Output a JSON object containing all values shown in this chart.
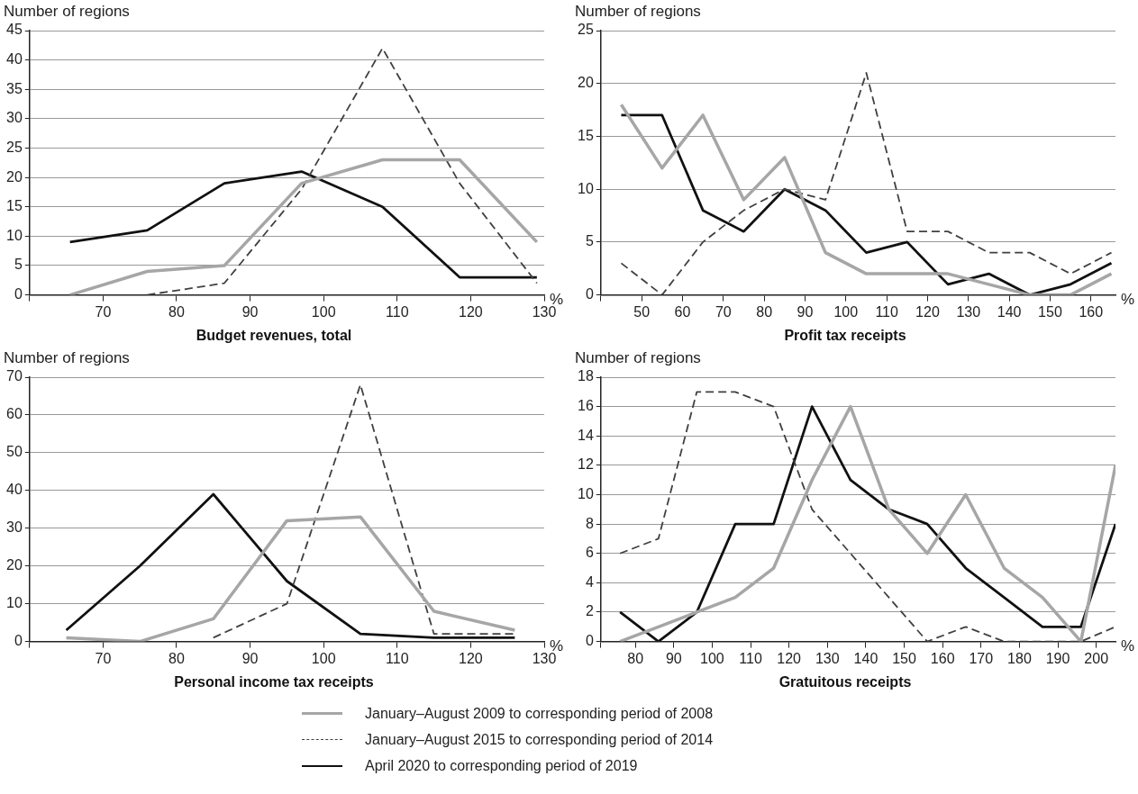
{
  "chart_data": [
    {
      "type": "line",
      "title": "Budget revenues, total",
      "ylabel": "Number of regions",
      "xlabel": "%",
      "xlim": [
        60,
        130
      ],
      "xticks": [
        {
          "value": 60,
          "label": null
        },
        70,
        80,
        90,
        100,
        110,
        120,
        130
      ],
      "ylim": [
        0,
        45
      ],
      "yticks": [
        0,
        5,
        10,
        15,
        20,
        25,
        30,
        35,
        40,
        45
      ],
      "grid": "y",
      "marker": "none",
      "legend": "bottom",
      "series": [
        {
          "name": "January–August 2009 to corresponding period of 2008",
          "color": "#a6a6a6",
          "x": [
            65.5,
            76,
            86.5,
            97,
            108,
            118.5,
            129
          ],
          "values": [
            0,
            4,
            5,
            19,
            23,
            23,
            9
          ]
        },
        {
          "name": "January–August 2015 to corresponding period of 2014",
          "color": "#404040",
          "line_style": "dashed",
          "x": [
            76,
            86.5,
            97,
            108,
            118.5,
            129
          ],
          "values": [
            0,
            2,
            18,
            42,
            19,
            2
          ]
        },
        {
          "name": "April 2020 to corresponding period of 2019",
          "color": "#111111",
          "x": [
            65.5,
            76,
            86.5,
            97,
            108,
            118.5,
            129
          ],
          "values": [
            9,
            11,
            19,
            21,
            15,
            3,
            3
          ]
        }
      ]
    },
    {
      "type": "line",
      "title": "Profit tax receipts",
      "ylabel": "Number of regions",
      "xlabel": "%",
      "xlim": [
        40,
        166
      ],
      "xticks": [
        {
          "value": 40,
          "label": null
        },
        50,
        60,
        70,
        80,
        90,
        100,
        110,
        120,
        130,
        140,
        150,
        160
      ],
      "ylim": [
        0,
        25
      ],
      "yticks": [
        0,
        5,
        10,
        15,
        20,
        25
      ],
      "grid": "y",
      "marker": "none",
      "series": [
        {
          "color": "#a6a6a6",
          "x": [
            45,
            55,
            65,
            75,
            85,
            95,
            105,
            115,
            125,
            135,
            145,
            155,
            165
          ],
          "values": [
            18,
            12,
            17,
            9,
            13,
            4,
            2,
            2,
            2,
            1,
            0,
            0,
            2
          ]
        },
        {
          "color": "#404040",
          "line_style": "dashed",
          "x": [
            45,
            55,
            65,
            75,
            85,
            95,
            105,
            115,
            125,
            135,
            145,
            155,
            165
          ],
          "values": [
            3,
            0,
            5,
            8,
            10,
            9,
            21,
            6,
            6,
            4,
            4,
            2,
            4
          ]
        },
        {
          "color": "#111111",
          "x": [
            45,
            55,
            65,
            75,
            85,
            95,
            105,
            115,
            125,
            135,
            145,
            155,
            165
          ],
          "values": [
            17,
            17,
            8,
            6,
            10,
            8,
            4,
            5,
            1,
            2,
            0,
            1,
            3
          ]
        }
      ]
    },
    {
      "type": "line",
      "title": "Personal income tax receipts",
      "ylabel": "Number of regions",
      "xlabel": "%",
      "xlim": [
        60,
        130
      ],
      "xticks": [
        {
          "value": 60,
          "label": null
        },
        70,
        80,
        90,
        100,
        110,
        120,
        130
      ],
      "ylim": [
        0,
        70
      ],
      "yticks": [
        0,
        10,
        20,
        30,
        40,
        50,
        60,
        70
      ],
      "grid": "y",
      "marker": "none",
      "series": [
        {
          "color": "#a6a6a6",
          "x": [
            65,
            75,
            85,
            95,
            105,
            115,
            126
          ],
          "values": [
            1,
            0,
            6,
            32,
            33,
            8,
            3
          ]
        },
        {
          "color": "#404040",
          "line_style": "dashed",
          "x": [
            85,
            95,
            105,
            115,
            126
          ],
          "values": [
            1,
            10,
            68,
            2,
            2
          ]
        },
        {
          "color": "#111111",
          "x": [
            65,
            75,
            85,
            95,
            105,
            115,
            126
          ],
          "values": [
            3,
            20,
            39,
            16,
            2,
            1,
            1
          ]
        }
      ]
    },
    {
      "type": "line",
      "title": "Gratuitous receipts",
      "ylabel": "Number of regions",
      "xlabel": "%",
      "xlim": [
        71,
        205
      ],
      "xticks": [
        {
          "value": 71,
          "label": null
        },
        80,
        90,
        100,
        110,
        120,
        130,
        140,
        150,
        160,
        170,
        180,
        190,
        200
      ],
      "ylim": [
        0,
        18
      ],
      "yticks": [
        0,
        2,
        4,
        6,
        8,
        10,
        12,
        14,
        16,
        18
      ],
      "grid": "y",
      "marker": "none",
      "series": [
        {
          "color": "#a6a6a6",
          "x": [
            76,
            86,
            96,
            106,
            116,
            126,
            136,
            146,
            156,
            166,
            176,
            186,
            196,
            205
          ],
          "values": [
            0,
            1,
            2,
            3,
            5,
            11,
            16,
            9,
            6,
            10,
            5,
            3,
            0,
            12
          ]
        },
        {
          "color": "#404040",
          "line_style": "dashed",
          "x": [
            76,
            86,
            96,
            106,
            116,
            126,
            136,
            146,
            156,
            166,
            176,
            186,
            196,
            205
          ],
          "values": [
            6,
            7,
            17,
            17,
            16,
            9,
            6,
            3,
            0,
            1,
            0,
            0,
            0,
            1
          ]
        },
        {
          "color": "#111111",
          "x": [
            76,
            86,
            96,
            106,
            116,
            126,
            136,
            146,
            156,
            166,
            176,
            186,
            196,
            205
          ],
          "values": [
            2,
            0,
            2,
            8,
            8,
            16,
            11,
            9,
            8,
            5,
            3,
            1,
            1,
            8
          ]
        }
      ]
    }
  ]
}
